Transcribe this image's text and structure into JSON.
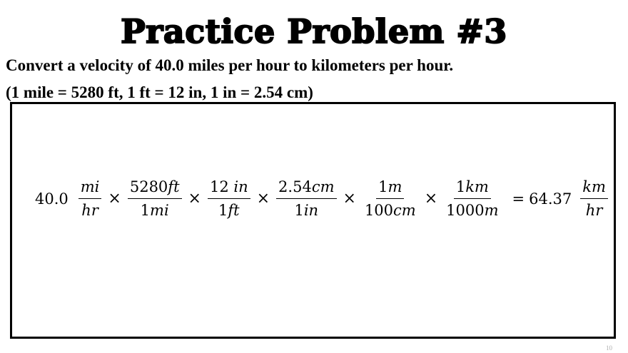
{
  "title": "Practice Problem #3",
  "prompt": "Convert a velocity of 40.0 miles per hour to kilometers per hour.",
  "conversion_note": "(1 mile = 5280 ft, 1 ft = 12 in, 1 in = 2.54 cm)",
  "equation": {
    "start_value": "40.0",
    "start_unit_num": "mi",
    "start_unit_den": "hr",
    "factors": [
      {
        "num_value": "5280",
        "num_unit": "ft",
        "den_value": "1",
        "den_unit": "mi"
      },
      {
        "num_value": "12 ",
        "num_unit": "in",
        "den_value": "1",
        "den_unit": "ft"
      },
      {
        "num_value": "2.54",
        "num_unit": "cm",
        "den_value": "1",
        "den_unit": "in"
      },
      {
        "num_value": "1",
        "num_unit": "m",
        "den_value": "100",
        "den_unit": "cm"
      },
      {
        "num_value": "1",
        "num_unit": "km",
        "den_value": "1000",
        "den_unit": "m"
      }
    ],
    "times_symbol": "×",
    "equals_symbol": "=",
    "result_value": "64.37",
    "result_unit_num": "km",
    "result_unit_den": "hr"
  },
  "slide_number": "10"
}
